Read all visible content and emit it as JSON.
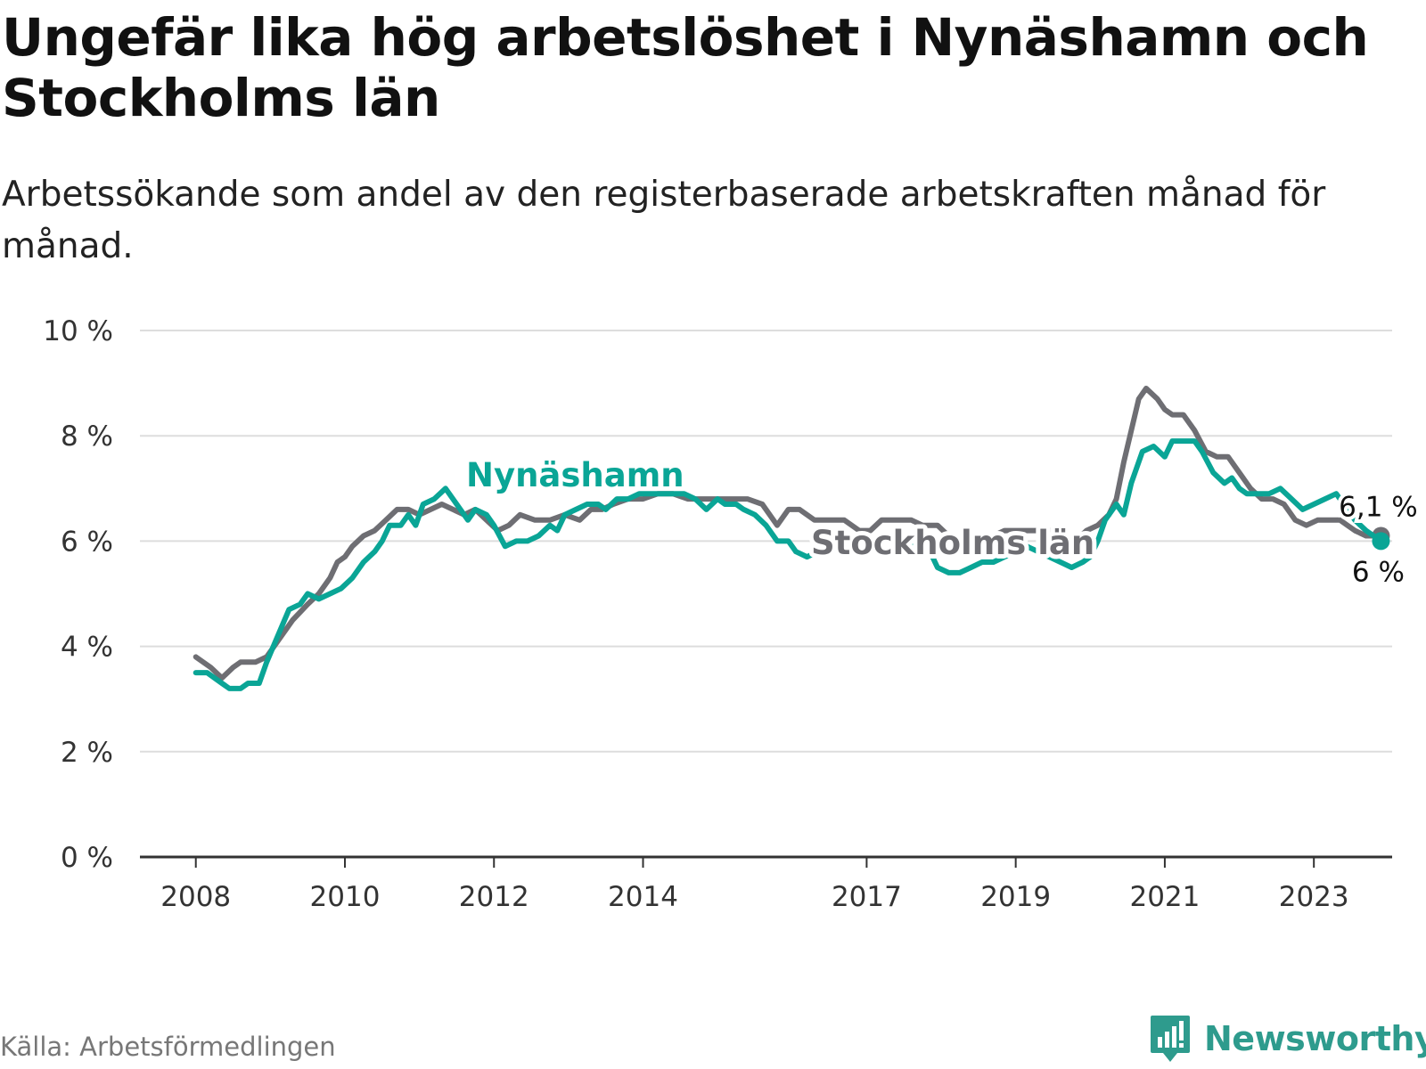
{
  "title": "Ungefär lika hög arbetslöshet i Nynäshamn och Stockholms län",
  "subtitle": "Arbetssökande som andel av den registerbaserade arbetskraften månad för månad.",
  "source": "Källa: Arbetsförmedlingen",
  "brand": {
    "name": "Newsworthy",
    "icon": "bar-chart-logo-icon"
  },
  "colors": {
    "nynashamn": "#0aa596",
    "stockholm": "#6e6e73",
    "grid": "#dddddd",
    "axis": "#333333"
  },
  "chart_data": {
    "type": "line",
    "title": "Ungefär lika hög arbetslöshet i Nynäshamn och Stockholms län",
    "ylabel": "",
    "xlabel": "",
    "ylim": [
      0,
      10
    ],
    "xlim": [
      2007.25,
      2024.05
    ],
    "y_ticks": [
      0,
      2,
      4,
      6,
      8,
      10
    ],
    "y_tick_labels": [
      "0 %",
      "2 %",
      "4 %",
      "6 %",
      "8 %",
      "10 %"
    ],
    "x_ticks": [
      2008,
      2010,
      2012,
      2014,
      2017,
      2019,
      2021,
      2023
    ],
    "x_tick_labels": [
      "2008",
      "2010",
      "2012",
      "2014",
      "2017",
      "2019",
      "2021",
      "2023"
    ],
    "grid": true,
    "series": [
      {
        "name": "Stockholms län",
        "label": "Stockholms län",
        "last_value_label": "6,1 %",
        "points": [
          [
            2008.0,
            3.8
          ],
          [
            2008.2,
            3.6
          ],
          [
            2008.35,
            3.4
          ],
          [
            2008.5,
            3.6
          ],
          [
            2008.6,
            3.7
          ],
          [
            2008.8,
            3.7
          ],
          [
            2008.95,
            3.8
          ],
          [
            2009.1,
            4.1
          ],
          [
            2009.3,
            4.5
          ],
          [
            2009.5,
            4.8
          ],
          [
            2009.65,
            5.0
          ],
          [
            2009.8,
            5.3
          ],
          [
            2009.9,
            5.6
          ],
          [
            2010.0,
            5.7
          ],
          [
            2010.1,
            5.9
          ],
          [
            2010.25,
            6.1
          ],
          [
            2010.4,
            6.2
          ],
          [
            2010.55,
            6.4
          ],
          [
            2010.7,
            6.6
          ],
          [
            2010.85,
            6.6
          ],
          [
            2011.0,
            6.5
          ],
          [
            2011.15,
            6.6
          ],
          [
            2011.3,
            6.7
          ],
          [
            2011.45,
            6.6
          ],
          [
            2011.6,
            6.5
          ],
          [
            2011.75,
            6.6
          ],
          [
            2011.9,
            6.4
          ],
          [
            2012.05,
            6.2
          ],
          [
            2012.2,
            6.3
          ],
          [
            2012.35,
            6.5
          ],
          [
            2012.55,
            6.4
          ],
          [
            2012.75,
            6.4
          ],
          [
            2012.95,
            6.5
          ],
          [
            2013.15,
            6.4
          ],
          [
            2013.3,
            6.6
          ],
          [
            2013.45,
            6.6
          ],
          [
            2013.6,
            6.7
          ],
          [
            2013.8,
            6.8
          ],
          [
            2014.0,
            6.8
          ],
          [
            2014.2,
            6.9
          ],
          [
            2014.4,
            6.9
          ],
          [
            2014.6,
            6.8
          ],
          [
            2014.8,
            6.8
          ],
          [
            2015.0,
            6.8
          ],
          [
            2015.2,
            6.8
          ],
          [
            2015.4,
            6.8
          ],
          [
            2015.6,
            6.7
          ],
          [
            2015.8,
            6.3
          ],
          [
            2015.95,
            6.6
          ],
          [
            2016.1,
            6.6
          ],
          [
            2016.3,
            6.4
          ],
          [
            2016.5,
            6.4
          ],
          [
            2016.7,
            6.4
          ],
          [
            2016.9,
            6.2
          ],
          [
            2017.05,
            6.2
          ],
          [
            2017.2,
            6.4
          ],
          [
            2017.4,
            6.4
          ],
          [
            2017.6,
            6.4
          ],
          [
            2017.75,
            6.3
          ],
          [
            2017.95,
            6.3
          ],
          [
            2018.1,
            6.1
          ],
          [
            2018.25,
            6.0
          ],
          [
            2018.4,
            6.0
          ],
          [
            2018.55,
            6.1
          ],
          [
            2018.7,
            6.1
          ],
          [
            2018.85,
            6.2
          ],
          [
            2019.05,
            6.2
          ],
          [
            2019.2,
            6.2
          ],
          [
            2019.35,
            6.2
          ],
          [
            2019.5,
            6.2
          ],
          [
            2019.65,
            6.1
          ],
          [
            2019.8,
            6.0
          ],
          [
            2019.95,
            6.2
          ],
          [
            2020.1,
            6.3
          ],
          [
            2020.25,
            6.5
          ],
          [
            2020.35,
            6.8
          ],
          [
            2020.45,
            7.5
          ],
          [
            2020.55,
            8.1
          ],
          [
            2020.65,
            8.7
          ],
          [
            2020.75,
            8.9
          ],
          [
            2020.9,
            8.7
          ],
          [
            2021.0,
            8.5
          ],
          [
            2021.1,
            8.4
          ],
          [
            2021.25,
            8.4
          ],
          [
            2021.4,
            8.1
          ],
          [
            2021.55,
            7.7
          ],
          [
            2021.7,
            7.6
          ],
          [
            2021.85,
            7.6
          ],
          [
            2022.0,
            7.3
          ],
          [
            2022.15,
            7.0
          ],
          [
            2022.3,
            6.8
          ],
          [
            2022.45,
            6.8
          ],
          [
            2022.6,
            6.7
          ],
          [
            2022.75,
            6.4
          ],
          [
            2022.9,
            6.3
          ],
          [
            2023.05,
            6.4
          ],
          [
            2023.2,
            6.4
          ],
          [
            2023.35,
            6.4
          ],
          [
            2023.45,
            6.3
          ],
          [
            2023.55,
            6.2
          ],
          [
            2023.7,
            6.1
          ],
          [
            2023.85,
            6.1
          ],
          [
            2023.9,
            6.1
          ]
        ]
      },
      {
        "name": "Nynäshamn",
        "label": "Nynäshamn",
        "last_value_label": "6 %",
        "points": [
          [
            2008.0,
            3.5
          ],
          [
            2008.15,
            3.5
          ],
          [
            2008.35,
            3.3
          ],
          [
            2008.45,
            3.2
          ],
          [
            2008.6,
            3.2
          ],
          [
            2008.7,
            3.3
          ],
          [
            2008.85,
            3.3
          ],
          [
            2008.95,
            3.7
          ],
          [
            2009.1,
            4.2
          ],
          [
            2009.25,
            4.7
          ],
          [
            2009.4,
            4.8
          ],
          [
            2009.5,
            5.0
          ],
          [
            2009.65,
            4.9
          ],
          [
            2009.8,
            5.0
          ],
          [
            2009.95,
            5.1
          ],
          [
            2010.1,
            5.3
          ],
          [
            2010.25,
            5.6
          ],
          [
            2010.4,
            5.8
          ],
          [
            2010.5,
            6.0
          ],
          [
            2010.6,
            6.3
          ],
          [
            2010.75,
            6.3
          ],
          [
            2010.85,
            6.5
          ],
          [
            2010.95,
            6.3
          ],
          [
            2011.05,
            6.7
          ],
          [
            2011.2,
            6.8
          ],
          [
            2011.35,
            7.0
          ],
          [
            2011.5,
            6.7
          ],
          [
            2011.65,
            6.4
          ],
          [
            2011.75,
            6.6
          ],
          [
            2011.9,
            6.5
          ],
          [
            2012.0,
            6.3
          ],
          [
            2012.15,
            5.9
          ],
          [
            2012.3,
            6.0
          ],
          [
            2012.45,
            6.0
          ],
          [
            2012.6,
            6.1
          ],
          [
            2012.75,
            6.3
          ],
          [
            2012.85,
            6.2
          ],
          [
            2012.95,
            6.5
          ],
          [
            2013.1,
            6.6
          ],
          [
            2013.25,
            6.7
          ],
          [
            2013.4,
            6.7
          ],
          [
            2013.5,
            6.6
          ],
          [
            2013.65,
            6.8
          ],
          [
            2013.8,
            6.8
          ],
          [
            2013.95,
            6.9
          ],
          [
            2014.1,
            6.9
          ],
          [
            2014.25,
            6.9
          ],
          [
            2014.4,
            6.9
          ],
          [
            2014.55,
            6.9
          ],
          [
            2014.7,
            6.8
          ],
          [
            2014.85,
            6.6
          ],
          [
            2015.0,
            6.8
          ],
          [
            2015.1,
            6.7
          ],
          [
            2015.25,
            6.7
          ],
          [
            2015.35,
            6.6
          ],
          [
            2015.5,
            6.5
          ],
          [
            2015.65,
            6.3
          ],
          [
            2015.8,
            6.0
          ],
          [
            2015.95,
            6.0
          ],
          [
            2016.05,
            5.8
          ],
          [
            2016.2,
            5.7
          ],
          [
            2016.35,
            5.8
          ],
          [
            2016.5,
            6.0
          ],
          [
            2016.65,
            6.1
          ],
          [
            2016.8,
            6.0
          ],
          [
            2016.95,
            5.8
          ],
          [
            2017.1,
            5.9
          ],
          [
            2017.25,
            5.8
          ],
          [
            2017.4,
            5.9
          ],
          [
            2017.55,
            6.0
          ],
          [
            2017.7,
            5.9
          ],
          [
            2017.85,
            5.8
          ],
          [
            2017.95,
            5.5
          ],
          [
            2018.1,
            5.4
          ],
          [
            2018.25,
            5.4
          ],
          [
            2018.4,
            5.5
          ],
          [
            2018.55,
            5.6
          ],
          [
            2018.7,
            5.6
          ],
          [
            2018.85,
            5.7
          ],
          [
            2019.0,
            5.8
          ],
          [
            2019.15,
            5.9
          ],
          [
            2019.3,
            5.8
          ],
          [
            2019.45,
            5.7
          ],
          [
            2019.6,
            5.6
          ],
          [
            2019.75,
            5.5
          ],
          [
            2019.9,
            5.6
          ],
          [
            2020.0,
            5.7
          ],
          [
            2020.1,
            6.0
          ],
          [
            2020.2,
            6.4
          ],
          [
            2020.35,
            6.7
          ],
          [
            2020.45,
            6.5
          ],
          [
            2020.55,
            7.1
          ],
          [
            2020.7,
            7.7
          ],
          [
            2020.85,
            7.8
          ],
          [
            2021.0,
            7.6
          ],
          [
            2021.1,
            7.9
          ],
          [
            2021.25,
            7.9
          ],
          [
            2021.4,
            7.9
          ],
          [
            2021.5,
            7.7
          ],
          [
            2021.65,
            7.3
          ],
          [
            2021.8,
            7.1
          ],
          [
            2021.9,
            7.2
          ],
          [
            2022.0,
            7.0
          ],
          [
            2022.1,
            6.9
          ],
          [
            2022.25,
            6.9
          ],
          [
            2022.4,
            6.9
          ],
          [
            2022.55,
            7.0
          ],
          [
            2022.7,
            6.8
          ],
          [
            2022.85,
            6.6
          ],
          [
            2023.0,
            6.7
          ],
          [
            2023.15,
            6.8
          ],
          [
            2023.3,
            6.9
          ],
          [
            2023.45,
            6.6
          ],
          [
            2023.55,
            6.4
          ],
          [
            2023.7,
            6.2
          ],
          [
            2023.8,
            6.1
          ],
          [
            2023.9,
            6.0
          ]
        ]
      }
    ]
  }
}
